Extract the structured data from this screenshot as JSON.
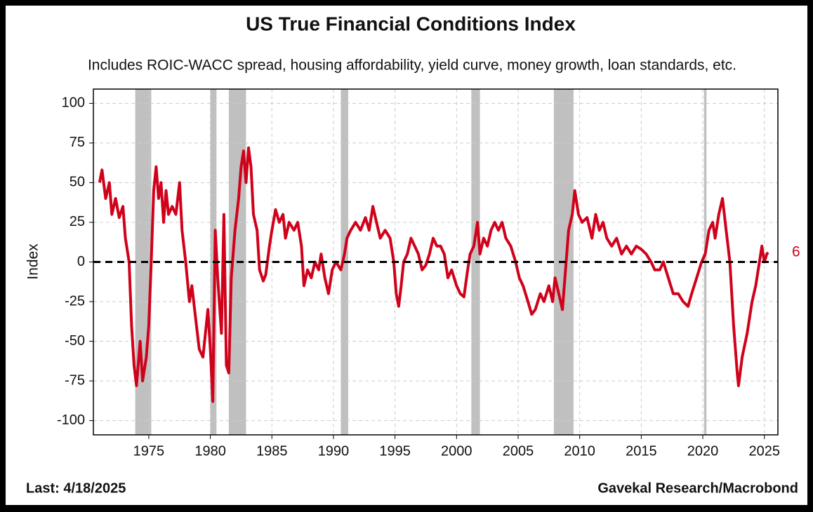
{
  "chart_data": {
    "type": "line",
    "title": "US True Financial Conditions Index",
    "subtitle": "Includes ROIC-WACC spread, housing affordability, yield curve, money growth, loan standards, etc.",
    "y_label": "Index",
    "footer_left": "Last: 4/18/2025",
    "footer_right": "Gavekal Research/Macrobond",
    "last_value": 6,
    "reference_line": 0,
    "grid": true,
    "xlim": [
      1970.5,
      2026.1
    ],
    "ylim": [
      -109,
      109
    ],
    "xticks": [
      1975,
      1980,
      1985,
      1990,
      1995,
      2000,
      2005,
      2010,
      2015,
      2020,
      2025
    ],
    "yticks": [
      -100,
      -75,
      -50,
      -25,
      0,
      25,
      50,
      75,
      100
    ],
    "shaded_periods": [
      [
        1973.9,
        1975.2
      ],
      [
        1980.0,
        1980.5
      ],
      [
        1981.5,
        1982.9
      ],
      [
        1990.6,
        1991.2
      ],
      [
        2001.2,
        2001.9
      ],
      [
        2007.9,
        2009.5
      ],
      [
        2020.1,
        2020.3
      ]
    ],
    "shade_color": "#c0c0c0",
    "x": [
      1971.0,
      1971.2,
      1971.5,
      1971.8,
      1972.0,
      1972.3,
      1972.6,
      1972.9,
      1973.1,
      1973.4,
      1973.6,
      1973.8,
      1974.0,
      1974.3,
      1974.5,
      1974.8,
      1975.0,
      1975.2,
      1975.4,
      1975.6,
      1975.8,
      1976.0,
      1976.2,
      1976.4,
      1976.6,
      1976.9,
      1977.2,
      1977.5,
      1977.7,
      1978.0,
      1978.3,
      1978.5,
      1978.8,
      1979.1,
      1979.4,
      1979.6,
      1979.8,
      1980.0,
      1980.2,
      1980.4,
      1980.6,
      1980.9,
      1981.1,
      1981.3,
      1981.5,
      1981.7,
      1982.0,
      1982.3,
      1982.5,
      1982.7,
      1982.9,
      1983.1,
      1983.3,
      1983.5,
      1983.8,
      1984.0,
      1984.3,
      1984.5,
      1984.8,
      1985.0,
      1985.3,
      1985.6,
      1985.9,
      1986.1,
      1986.4,
      1986.8,
      1987.1,
      1987.4,
      1987.6,
      1987.9,
      1988.2,
      1988.5,
      1988.8,
      1989.0,
      1989.3,
      1989.6,
      1989.9,
      1990.2,
      1990.6,
      1990.9,
      1991.1,
      1991.4,
      1991.8,
      1992.2,
      1992.6,
      1992.9,
      1993.2,
      1993.5,
      1993.8,
      1994.2,
      1994.6,
      1994.9,
      1995.1,
      1995.3,
      1995.5,
      1995.7,
      1996.0,
      1996.3,
      1996.6,
      1996.9,
      1997.2,
      1997.5,
      1997.8,
      1998.1,
      1998.4,
      1998.7,
      1999.0,
      1999.3,
      1999.6,
      2000.0,
      2000.3,
      2000.6,
      2000.9,
      2001.1,
      2001.4,
      2001.7,
      2001.9,
      2002.2,
      2002.5,
      2002.8,
      2003.1,
      2003.4,
      2003.7,
      2004.0,
      2004.4,
      2004.8,
      2005.1,
      2005.4,
      2005.8,
      2006.1,
      2006.4,
      2006.8,
      2007.1,
      2007.5,
      2007.8,
      2008.0,
      2008.3,
      2008.6,
      2008.9,
      2009.1,
      2009.4,
      2009.6,
      2009.9,
      2010.2,
      2010.6,
      2011.0,
      2011.3,
      2011.6,
      2011.9,
      2012.2,
      2012.6,
      2013.0,
      2013.4,
      2013.8,
      2014.2,
      2014.6,
      2015.0,
      2015.4,
      2015.8,
      2016.1,
      2016.5,
      2016.8,
      2017.2,
      2017.6,
      2018.0,
      2018.4,
      2018.8,
      2019.1,
      2019.5,
      2019.9,
      2020.2,
      2020.5,
      2020.8,
      2021.0,
      2021.3,
      2021.6,
      2021.9,
      2022.2,
      2022.5,
      2022.8,
      2022.9,
      2023.2,
      2023.6,
      2024.0,
      2024.3,
      2024.6,
      2024.8,
      2025.0,
      2025.2,
      2025.3
    ],
    "series": [
      {
        "color": "#d0021b",
        "values": [
          50,
          58,
          40,
          50,
          30,
          40,
          28,
          35,
          15,
          0,
          -40,
          -65,
          -78,
          -50,
          -75,
          -60,
          -40,
          0,
          45,
          60,
          40,
          50,
          25,
          45,
          30,
          35,
          30,
          50,
          20,
          0,
          -25,
          -15,
          -35,
          -55,
          -60,
          -45,
          -30,
          -55,
          -88,
          20,
          -10,
          -45,
          30,
          -65,
          -70,
          -10,
          20,
          40,
          60,
          70,
          50,
          72,
          60,
          30,
          20,
          -5,
          -12,
          -8,
          10,
          20,
          33,
          25,
          30,
          15,
          25,
          20,
          25,
          10,
          -15,
          -5,
          -10,
          0,
          -5,
          5,
          -10,
          -20,
          -5,
          0,
          -5,
          5,
          15,
          20,
          25,
          20,
          28,
          20,
          35,
          25,
          15,
          20,
          15,
          0,
          -20,
          -28,
          -15,
          0,
          5,
          15,
          10,
          5,
          -5,
          -2,
          5,
          15,
          10,
          10,
          5,
          -10,
          -5,
          -15,
          -20,
          -22,
          -5,
          5,
          10,
          25,
          5,
          15,
          10,
          20,
          25,
          20,
          25,
          15,
          10,
          0,
          -10,
          -15,
          -25,
          -33,
          -30,
          -20,
          -25,
          -15,
          -25,
          -10,
          -20,
          -30,
          0,
          20,
          30,
          45,
          30,
          25,
          28,
          15,
          30,
          20,
          25,
          15,
          10,
          15,
          5,
          10,
          5,
          10,
          8,
          5,
          0,
          -5,
          -5,
          0,
          -10,
          -20,
          -20,
          -25,
          -28,
          -20,
          -10,
          0,
          5,
          20,
          25,
          15,
          30,
          40,
          20,
          0,
          -40,
          -70,
          -78,
          -60,
          -45,
          -25,
          -15,
          0,
          10,
          0,
          5,
          6
        ]
      }
    ]
  }
}
